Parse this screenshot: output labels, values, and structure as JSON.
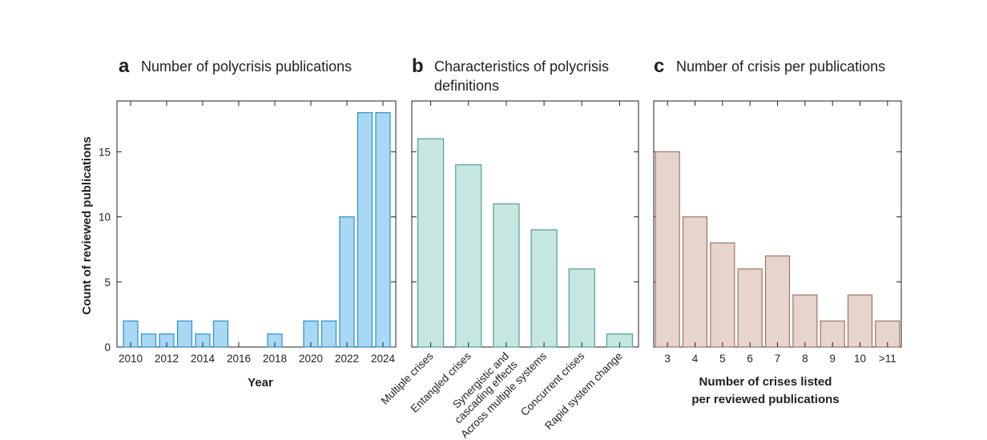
{
  "chart_data": [
    {
      "type": "bar",
      "panel_label": "a",
      "title": "Number of polycrisis publications",
      "xlabel": "Year",
      "ylabel": "Count of reviewed publications",
      "x": [
        2010,
        2011,
        2012,
        2013,
        2014,
        2015,
        2016,
        2017,
        2018,
        2019,
        2020,
        2021,
        2022,
        2023,
        2024
      ],
      "values": [
        2,
        1,
        1,
        2,
        1,
        2,
        0,
        0,
        1,
        0,
        2,
        2,
        10,
        18,
        18
      ],
      "x_tick_labels": [
        "2010",
        "2012",
        "2014",
        "2016",
        "2018",
        "2020",
        "2022",
        "2024"
      ],
      "x_tick_values": [
        2010,
        2012,
        2014,
        2016,
        2018,
        2020,
        2022,
        2024
      ],
      "y_ticks": [
        0,
        5,
        10,
        15
      ],
      "ylim": [
        0,
        18.9
      ],
      "fill": "#a8d8f4",
      "stroke": "#2c8fcf"
    },
    {
      "type": "bar",
      "panel_label": "b",
      "title_lines": [
        "Characteristics of polycrisis",
        "definitions"
      ],
      "categories": [
        [
          "Multiple crises"
        ],
        [
          "Entangled crises"
        ],
        [
          "Synergistic and",
          "cascading effects"
        ],
        [
          "Across multiple systems"
        ],
        [
          "Concurrent crises"
        ],
        [
          "Rapid system change"
        ]
      ],
      "values": [
        16,
        14,
        11,
        9,
        6,
        1
      ],
      "ylim": [
        0,
        18.9
      ],
      "y_ticks": [
        0,
        5,
        10,
        15
      ],
      "fill": "#c6e7e1",
      "stroke": "#4f9f96"
    },
    {
      "type": "bar",
      "panel_label": "c",
      "title": "Number of crisis per publications",
      "xlabel_lines": [
        "Number of crises listed",
        "per reviewed publications"
      ],
      "categories": [
        "3",
        "4",
        "5",
        "6",
        "7",
        "8",
        "9",
        "10",
        ">11"
      ],
      "values": [
        15,
        10,
        8,
        6,
        7,
        4,
        2,
        4,
        2
      ],
      "ylim": [
        0,
        18.9
      ],
      "y_ticks": [
        0,
        5,
        10,
        15
      ],
      "fill": "#e7d4cc",
      "stroke": "#9c7566"
    }
  ]
}
